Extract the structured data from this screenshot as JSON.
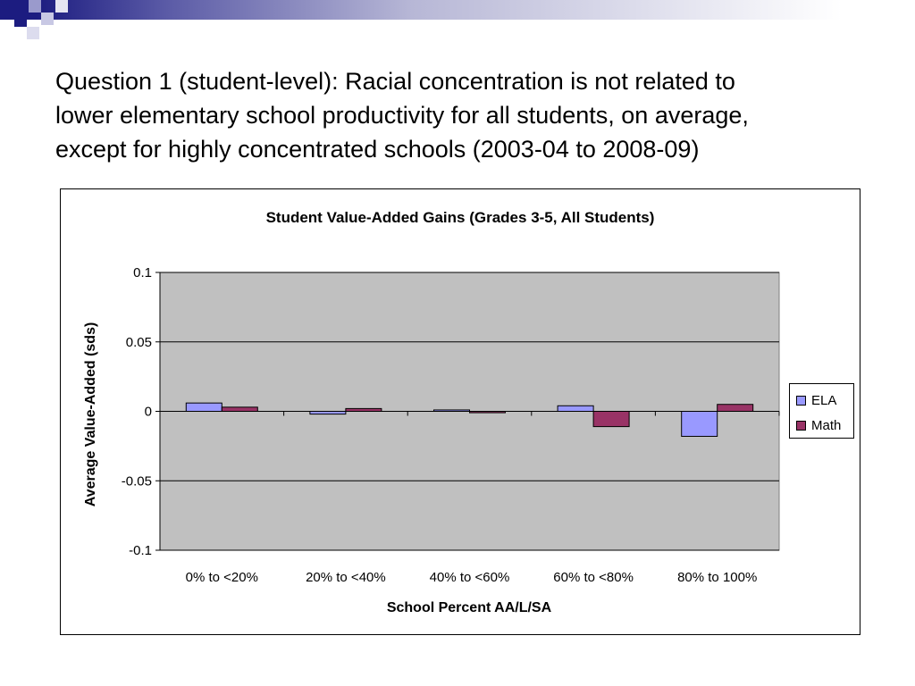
{
  "slide": {
    "title_lines": [
      "Question 1 (student-level):  Racial concentration is not related to",
      "lower elementary school productivity for all students, on average,",
      "except for highly concentrated schools (2003-04 to 2008-09)"
    ]
  },
  "colors": {
    "header_dark": "#1c1c80",
    "plot_bg": "#c0c0c0",
    "ela": "#9999ff",
    "math": "#993366"
  },
  "chart_data": {
    "type": "bar",
    "title": "Student Value-Added Gains (Grades 3-5, All Students)",
    "xlabel": "School Percent AA/L/SA",
    "ylabel": "Average Value-Added (sds)",
    "categories": [
      "0% to <20%",
      "20% to <40%",
      "40% to <60%",
      "60% to <80%",
      "80% to 100%"
    ],
    "series": [
      {
        "name": "ELA",
        "values": [
          0.006,
          -0.002,
          0.001,
          0.004,
          -0.018
        ]
      },
      {
        "name": "Math",
        "values": [
          0.003,
          0.002,
          -0.001,
          -0.011,
          0.005
        ]
      }
    ],
    "ylim": [
      -0.1,
      0.1
    ],
    "yticks": [
      0.1,
      0.05,
      0,
      -0.05,
      -0.1
    ],
    "ytick_labels": [
      "0.1",
      "0.05",
      "0",
      "-0.05",
      "-0.1"
    ],
    "grid": true,
    "legend_position": "right"
  }
}
